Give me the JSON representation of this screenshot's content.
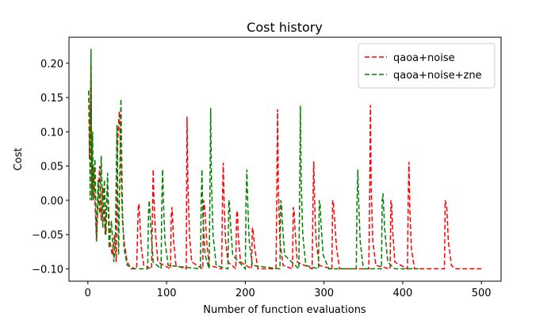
{
  "chart_data": {
    "type": "line",
    "title": "Cost history",
    "x_label": "Number of function evaluations",
    "y_label": "Cost",
    "xlim": [
      -24,
      525
    ],
    "ylim": [
      -0.118,
      0.238
    ],
    "xticks": [
      0,
      100,
      200,
      300,
      400,
      500
    ],
    "yticks": [
      {
        "value": -0.1,
        "label": "−0.10"
      },
      {
        "value": -0.05,
        "label": "−0.05"
      },
      {
        "value": 0,
        "label": "0.00"
      },
      {
        "value": 0.05,
        "label": "0.05"
      },
      {
        "value": 0.1,
        "label": "0.10"
      },
      {
        "value": 0.15,
        "label": "0.15"
      },
      {
        "value": 0.2,
        "label": "0.20"
      }
    ],
    "legend": "upper right",
    "line_style": "dashed",
    "series": [
      {
        "name": "qaoa+noise",
        "color": "#ff0000",
        "x": [
          1,
          2,
          3,
          4,
          5,
          7,
          9,
          11,
          13,
          15,
          17,
          19,
          22,
          25,
          28,
          31,
          34,
          36,
          38,
          40,
          42,
          44,
          46,
          50,
          55,
          62,
          64,
          65,
          66,
          68,
          71,
          81,
          82,
          83,
          84,
          86,
          89,
          105,
          106,
          107,
          109,
          112,
          124,
          125,
          126,
          127,
          129,
          132,
          146,
          147,
          148,
          149,
          151,
          154,
          170,
          171,
          172,
          173,
          175,
          178,
          188,
          189,
          190,
          191,
          194,
          208,
          209,
          210,
          212,
          216,
          239,
          240,
          241,
          242,
          244,
          248,
          260,
          261,
          262,
          263,
          266,
          285,
          286,
          287,
          288,
          290,
          294,
          310,
          311,
          312,
          313,
          316,
          320,
          357,
          358,
          359,
          360,
          362,
          366,
          384,
          385,
          386,
          387,
          390,
          406,
          407,
          408,
          409,
          411,
          415,
          453,
          454,
          455,
          456,
          458,
          462,
          467,
          500
        ],
        "values": [
          0.16,
          0.06,
          0.13,
          0.2,
          0.0,
          0.05,
          0.0,
          -0.06,
          0.0,
          0.05,
          -0.03,
          0.02,
          -0.05,
          0.03,
          -0.06,
          -0.08,
          -0.05,
          -0.09,
          0.09,
          0.13,
          0.05,
          -0.03,
          -0.06,
          -0.09,
          -0.1,
          -0.1,
          -0.01,
          -0.005,
          -0.03,
          -0.07,
          -0.095,
          -0.1,
          -0.02,
          0.045,
          0.0,
          -0.05,
          -0.09,
          -0.1,
          -0.02,
          -0.01,
          -0.06,
          -0.095,
          -0.1,
          -0.1,
          0.122,
          0.03,
          -0.05,
          -0.09,
          -0.1,
          0.0,
          -0.005,
          -0.02,
          -0.06,
          -0.095,
          -0.1,
          0.0,
          0.055,
          0.0,
          -0.06,
          -0.09,
          -0.1,
          -0.02,
          -0.015,
          -0.05,
          -0.09,
          -0.1,
          -0.04,
          -0.045,
          -0.07,
          -0.1,
          -0.1,
          0.0,
          0.133,
          0.02,
          -0.06,
          -0.095,
          -0.1,
          -0.01,
          -0.015,
          -0.04,
          -0.09,
          -0.1,
          0.0,
          0.057,
          0.0,
          -0.06,
          -0.095,
          -0.1,
          0.0,
          -0.005,
          -0.02,
          -0.07,
          -0.1,
          -0.1,
          0.0,
          0.139,
          0.02,
          -0.06,
          -0.095,
          -0.1,
          0.0,
          -0.005,
          -0.04,
          -0.09,
          -0.1,
          0.0,
          0.056,
          -0.01,
          -0.07,
          -0.1,
          -0.1,
          0.0,
          -0.005,
          -0.01,
          -0.06,
          -0.095,
          -0.1,
          -0.1
        ]
      },
      {
        "name": "qaoa+noise+zne",
        "color": "#008000",
        "x": [
          1,
          2,
          3,
          4,
          5,
          6,
          7,
          9,
          11,
          13,
          15,
          17,
          19,
          21,
          23,
          25,
          27,
          30,
          33,
          35,
          37,
          39,
          42,
          44,
          46,
          50,
          60,
          76,
          77,
          78,
          80,
          83,
          93,
          94,
          95,
          96,
          98,
          102,
          143,
          144,
          145,
          146,
          149,
          154,
          155,
          156,
          157,
          159,
          163,
          178,
          179,
          180,
          181,
          184,
          200,
          201,
          202,
          203,
          205,
          209,
          244,
          245,
          246,
          247,
          250,
          268,
          269,
          270,
          271,
          273,
          277,
          293,
          294,
          295,
          296,
          299,
          306,
          341,
          342,
          343,
          344,
          346,
          350,
          373,
          374,
          375,
          377,
          381,
          390,
          420
        ],
        "values": [
          0.16,
          0.13,
          0.0,
          0.221,
          0.0,
          0.1,
          0.0,
          0.06,
          -0.06,
          0.03,
          -0.02,
          0.065,
          -0.04,
          0.03,
          -0.05,
          0.04,
          -0.07,
          -0.03,
          -0.09,
          -0.05,
          0.11,
          -0.08,
          0.148,
          -0.02,
          -0.07,
          -0.095,
          -0.1,
          -0.1,
          -0.02,
          0.0,
          -0.04,
          -0.09,
          -0.1,
          0.0,
          0.045,
          0.0,
          -0.06,
          -0.095,
          -0.1,
          0.0,
          0.045,
          -0.02,
          -0.08,
          -0.1,
          0.0,
          0.135,
          0.03,
          -0.05,
          -0.095,
          -0.1,
          0.0,
          -0.005,
          -0.03,
          -0.08,
          -0.1,
          0.0,
          0.045,
          0.0,
          -0.06,
          -0.095,
          -0.1,
          0.0,
          -0.005,
          -0.03,
          -0.08,
          -0.1,
          0.0,
          0.138,
          0.03,
          -0.05,
          -0.095,
          -0.1,
          0.0,
          -0.005,
          -0.03,
          -0.08,
          -0.1,
          -0.1,
          0.0,
          0.045,
          0.0,
          -0.06,
          -0.1,
          -0.1,
          0.0,
          0.01,
          -0.04,
          -0.09,
          -0.1,
          -0.1
        ]
      }
    ]
  }
}
